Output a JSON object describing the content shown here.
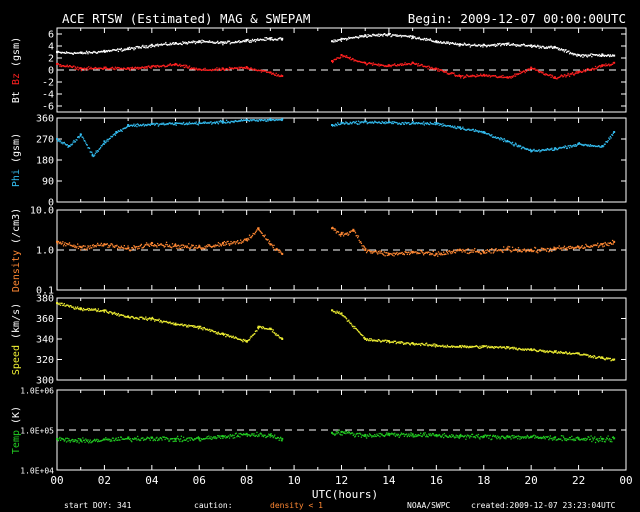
{
  "header": {
    "title": "ACE RTSW (Estimated) MAG & SWEPAM",
    "begin": "Begin: 2009-12-07 00:00:00UTC"
  },
  "footer": {
    "start_doy": "start DOY: 341",
    "caution": "caution:",
    "density_note": "density < 1",
    "agency": "NOAA/SWPC",
    "created": "created:2009-12-07 23:23:04UTC"
  },
  "colors": {
    "background": "#000000",
    "frame": "#ffffff",
    "bt": "#ffffff",
    "bz": "#ff2020",
    "phi": "#33bbee",
    "density": "#ff8833",
    "speed": "#eeee33",
    "temp": "#22cc22"
  },
  "chart_data": {
    "type": "scatter",
    "xlabel": "UTC(hours)",
    "x_range": [
      0,
      24
    ],
    "x_ticks": [
      "00",
      "02",
      "04",
      "06",
      "08",
      "10",
      "12",
      "14",
      "16",
      "18",
      "20",
      "22",
      "00"
    ],
    "data_gap": [
      9.6,
      11.5
    ],
    "panels": [
      {
        "name": "mag",
        "ylabel_parts": [
          "Bt",
          "Bz",
          "(gsm)"
        ],
        "ylim": [
          -7,
          7
        ],
        "y_ticks": [
          "6",
          "4",
          "2",
          "0",
          "-2",
          "-4",
          "-6"
        ],
        "y_tick_values": [
          6,
          4,
          2,
          0,
          -2,
          -4,
          -6
        ],
        "reference_line": 0,
        "series": [
          {
            "name": "Bt",
            "x": [
              0,
              1,
              2,
              3,
              4,
              5,
              6,
              7,
              8,
              9,
              9.5,
              11.6,
              12,
              13,
              14,
              15,
              16,
              17,
              18,
              19,
              20,
              21,
              22,
              23,
              23.5
            ],
            "y": [
              3.0,
              2.9,
              3.2,
              3.6,
              4.2,
              4.5,
              4.8,
              4.6,
              5.0,
              5.3,
              5.2,
              4.8,
              5.2,
              5.8,
              6.0,
              5.6,
              4.8,
              4.3,
              4.2,
              4.4,
              4.1,
              3.8,
              2.5,
              2.6,
              2.4
            ]
          },
          {
            "name": "Bz",
            "x": [
              0,
              1,
              2,
              3,
              4,
              5,
              6,
              7,
              8,
              9,
              9.5,
              11.6,
              12,
              13,
              14,
              15,
              16,
              17,
              18,
              19,
              20,
              21,
              22,
              23,
              23.5
            ],
            "y": [
              1.0,
              0.3,
              0.4,
              0.3,
              0.6,
              1.0,
              0.1,
              0.2,
              0.5,
              -0.4,
              -1.0,
              1.5,
              2.5,
              1.2,
              0.8,
              1.2,
              0.2,
              -1.0,
              -0.8,
              -1.2,
              0.4,
              -1.2,
              -0.3,
              0.8,
              1.2
            ]
          }
        ]
      },
      {
        "name": "phi",
        "ylabel_parts": [
          "Phi",
          "(gsm)"
        ],
        "ylim": [
          0,
          360
        ],
        "y_ticks": [
          "360",
          "270",
          "180",
          "90",
          "0"
        ],
        "y_tick_values": [
          360,
          270,
          180,
          90,
          0
        ],
        "series": [
          {
            "name": "Phi",
            "x": [
              0,
              0.5,
              1,
              1.5,
              2,
              2.5,
              3,
              4,
              5,
              6,
              7,
              8,
              9,
              9.5,
              11.6,
              12,
              13,
              14,
              15,
              16,
              17,
              18,
              19,
              20,
              21,
              22,
              23,
              23.5
            ],
            "y": [
              270,
              240,
              290,
              200,
              260,
              300,
              330,
              335,
              338,
              340,
              345,
              352,
              355,
              355,
              330,
              340,
              345,
              342,
              340,
              338,
              320,
              300,
              260,
              220,
              230,
              250,
              240,
              300
            ]
          }
        ]
      },
      {
        "name": "density",
        "ylabel_parts": [
          "Density",
          "(/cm3)"
        ],
        "log": true,
        "ylim": [
          0.1,
          10
        ],
        "y_ticks": [
          "10.0",
          "1.0",
          "0.1"
        ],
        "y_tick_values": [
          10,
          1,
          0.1
        ],
        "reference_line": 1,
        "series": [
          {
            "name": "Density",
            "x": [
              0,
              1,
              2,
              3,
              4,
              5,
              6,
              7,
              8,
              8.5,
              9,
              9.5,
              11.6,
              12,
              12.5,
              13,
              14,
              15,
              16,
              17,
              18,
              19,
              20,
              21,
              22,
              23,
              23.5
            ],
            "y": [
              1.6,
              1.2,
              1.4,
              1.1,
              1.5,
              1.3,
              1.2,
              1.5,
              1.8,
              3.5,
              1.4,
              0.8,
              3.5,
              2.5,
              3.2,
              1.0,
              0.8,
              0.9,
              0.8,
              1.0,
              0.9,
              1.1,
              1.0,
              1.1,
              1.2,
              1.4,
              1.6
            ]
          }
        ]
      },
      {
        "name": "speed",
        "ylabel_parts": [
          "Speed",
          "(km/s)"
        ],
        "ylim": [
          300,
          380
        ],
        "y_ticks": [
          "380",
          "360",
          "340",
          "320",
          "300"
        ],
        "y_tick_values": [
          380,
          360,
          340,
          320,
          300
        ],
        "series": [
          {
            "name": "Speed",
            "x": [
              0,
              1,
              2,
              3,
              4,
              5,
              6,
              7,
              8,
              8.5,
              9,
              9.5,
              11.6,
              12,
              13,
              14,
              15,
              16,
              17,
              18,
              19,
              20,
              21,
              22,
              23,
              23.5
            ],
            "y": [
              375,
              370,
              368,
              362,
              360,
              355,
              352,
              345,
              338,
              352,
              350,
              340,
              368,
              365,
              340,
              338,
              336,
              334,
              333,
              333,
              332,
              330,
              328,
              326,
              322,
              320
            ]
          }
        ]
      },
      {
        "name": "temp",
        "ylabel_parts": [
          "Temp",
          "(K)"
        ],
        "log": true,
        "ylim": [
          10000,
          1000000
        ],
        "y_ticks": [
          "1.0E+06",
          "1.0E+05",
          "1.0E+04"
        ],
        "y_tick_values": [
          1000000,
          100000,
          10000
        ],
        "reference_line": 100000,
        "series": [
          {
            "name": "Temp",
            "x": [
              0,
              1,
              2,
              3,
              4,
              5,
              6,
              7,
              8,
              9,
              9.5,
              11.6,
              12,
              13,
              14,
              15,
              16,
              17,
              18,
              19,
              20,
              21,
              22,
              23,
              23.5
            ],
            "y": [
              60000,
              55000,
              58000,
              62000,
              65000,
              60000,
              62000,
              70000,
              80000,
              75000,
              60000,
              85000,
              90000,
              75000,
              80000,
              78000,
              75000,
              72000,
              70000,
              70000,
              68000,
              65000,
              62000,
              60000,
              62000
            ]
          }
        ]
      }
    ]
  }
}
